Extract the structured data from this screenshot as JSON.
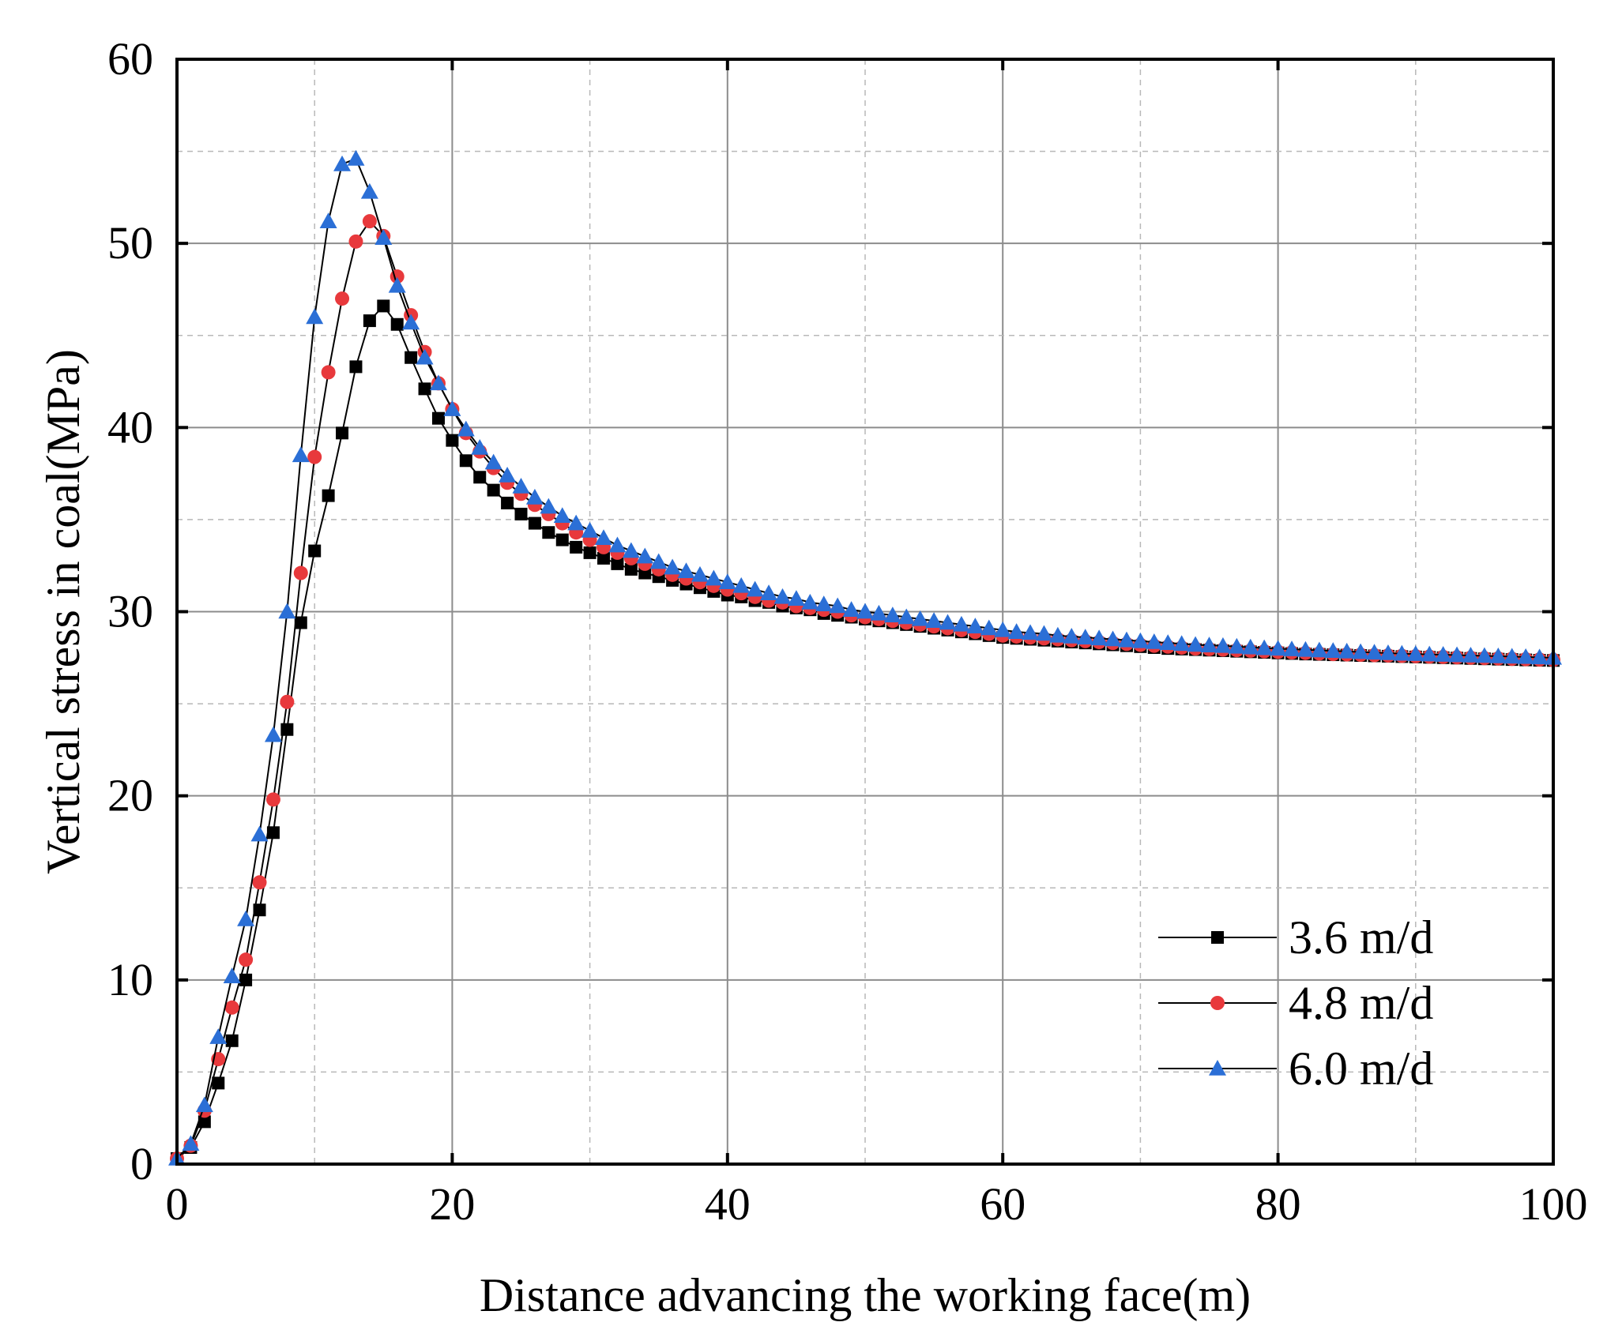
{
  "chart_data": {
    "type": "line",
    "title": "",
    "xlabel": "Distance advancing the working face(m)",
    "ylabel": "Vertical stress in coal(MPa)",
    "xlim": [
      0,
      100
    ],
    "ylim": [
      0,
      60
    ],
    "xticks": [
      0,
      20,
      40,
      60,
      80,
      100
    ],
    "yticks": [
      0,
      10,
      20,
      30,
      40,
      50,
      60
    ],
    "xtick_labels": [
      "0",
      "20",
      "40",
      "60",
      "80",
      "100"
    ],
    "ytick_labels": [
      "0",
      "10",
      "20",
      "30",
      "40",
      "50",
      "60"
    ],
    "grid": true,
    "legend_position": "bottom-right",
    "x": [
      0,
      1,
      2,
      3,
      4,
      5,
      6,
      7,
      8,
      9,
      10,
      11,
      12,
      13,
      14,
      15,
      16,
      17,
      18,
      19,
      20,
      21,
      22,
      23,
      24,
      25,
      26,
      27,
      28,
      29,
      30,
      31,
      32,
      33,
      34,
      35,
      36,
      37,
      38,
      39,
      40,
      41,
      42,
      43,
      44,
      45,
      46,
      47,
      48,
      49,
      50,
      51,
      52,
      53,
      54,
      55,
      56,
      57,
      58,
      59,
      60,
      61,
      62,
      63,
      64,
      65,
      66,
      67,
      68,
      69,
      70,
      71,
      72,
      73,
      74,
      75,
      76,
      77,
      78,
      79,
      80,
      81,
      82,
      83,
      84,
      85,
      86,
      87,
      88,
      89,
      90,
      91,
      92,
      93,
      94,
      95,
      96,
      97,
      98,
      99,
      100
    ],
    "series": [
      {
        "name": "3.6 m/d",
        "color": "#000000",
        "marker": "square",
        "values": [
          0.3,
          0.9,
          2.3,
          4.4,
          6.7,
          10.0,
          13.8,
          18.0,
          23.6,
          29.4,
          33.3,
          36.3,
          39.7,
          43.3,
          45.8,
          46.6,
          45.6,
          43.8,
          42.1,
          40.5,
          39.3,
          38.2,
          37.3,
          36.6,
          35.9,
          35.3,
          34.8,
          34.3,
          33.9,
          33.5,
          33.2,
          32.9,
          32.6,
          32.3,
          32.1,
          31.9,
          31.7,
          31.5,
          31.3,
          31.1,
          30.9,
          30.8,
          30.6,
          30.5,
          30.3,
          30.2,
          30.1,
          29.9,
          29.8,
          29.7,
          29.6,
          29.5,
          29.4,
          29.3,
          29.2,
          29.1,
          29.0,
          28.9,
          28.8,
          28.7,
          28.6,
          28.55,
          28.5,
          28.45,
          28.4,
          28.35,
          28.3,
          28.25,
          28.2,
          28.15,
          28.1,
          28.05,
          28.0,
          27.97,
          27.94,
          27.91,
          27.88,
          27.85,
          27.82,
          27.79,
          27.76,
          27.73,
          27.7,
          27.68,
          27.66,
          27.64,
          27.62,
          27.6,
          27.58,
          27.56,
          27.54,
          27.52,
          27.5,
          27.48,
          27.46,
          27.44,
          27.42,
          27.4,
          27.38,
          27.36,
          27.35
        ]
      },
      {
        "name": "4.8 m/d",
        "color": "#e8393c",
        "marker": "circle",
        "values": [
          0.3,
          1.0,
          2.9,
          5.7,
          8.5,
          11.1,
          15.3,
          19.8,
          25.1,
          32.1,
          38.4,
          43.0,
          47.0,
          50.1,
          51.2,
          50.4,
          48.2,
          46.1,
          44.1,
          42.4,
          41.0,
          39.7,
          38.7,
          37.8,
          37.0,
          36.4,
          35.8,
          35.3,
          34.8,
          34.3,
          33.9,
          33.5,
          33.2,
          32.9,
          32.6,
          32.3,
          32.0,
          31.8,
          31.6,
          31.4,
          31.2,
          31.0,
          30.8,
          30.6,
          30.5,
          30.3,
          30.2,
          30.1,
          30.0,
          29.8,
          29.7,
          29.6,
          29.5,
          29.4,
          29.3,
          29.2,
          29.1,
          29.0,
          28.9,
          28.8,
          28.7,
          28.65,
          28.6,
          28.55,
          28.5,
          28.45,
          28.4,
          28.35,
          28.3,
          28.25,
          28.2,
          28.15,
          28.1,
          28.05,
          28.0,
          27.97,
          27.94,
          27.91,
          27.88,
          27.85,
          27.82,
          27.79,
          27.76,
          27.73,
          27.7,
          27.68,
          27.66,
          27.64,
          27.62,
          27.6,
          27.58,
          27.56,
          27.54,
          27.52,
          27.5,
          27.48,
          27.46,
          27.44,
          27.42,
          27.4,
          27.38
        ]
      },
      {
        "name": "6.0 m/d",
        "color": "#2b6fd6",
        "marker": "triangle",
        "values": [
          0.3,
          1.1,
          3.2,
          6.9,
          10.2,
          13.3,
          17.9,
          23.3,
          30.0,
          38.5,
          46.0,
          51.2,
          54.3,
          54.6,
          52.8,
          50.3,
          47.7,
          45.7,
          43.8,
          42.4,
          41.0,
          39.9,
          38.9,
          38.1,
          37.4,
          36.8,
          36.2,
          35.7,
          35.2,
          34.8,
          34.4,
          34.0,
          33.6,
          33.3,
          33.0,
          32.7,
          32.4,
          32.2,
          32.0,
          31.8,
          31.6,
          31.4,
          31.2,
          31.0,
          30.8,
          30.7,
          30.5,
          30.4,
          30.3,
          30.1,
          30.0,
          29.9,
          29.8,
          29.7,
          29.6,
          29.5,
          29.4,
          29.3,
          29.2,
          29.1,
          29.0,
          28.9,
          28.85,
          28.8,
          28.7,
          28.65,
          28.6,
          28.55,
          28.5,
          28.45,
          28.4,
          28.35,
          28.3,
          28.25,
          28.2,
          28.17,
          28.14,
          28.1,
          28.06,
          28.02,
          27.99,
          27.96,
          27.93,
          27.9,
          27.87,
          27.84,
          27.81,
          27.78,
          27.75,
          27.72,
          27.7,
          27.68,
          27.66,
          27.64,
          27.62,
          27.6,
          27.58,
          27.56,
          27.54,
          27.52,
          27.5
        ]
      }
    ]
  }
}
